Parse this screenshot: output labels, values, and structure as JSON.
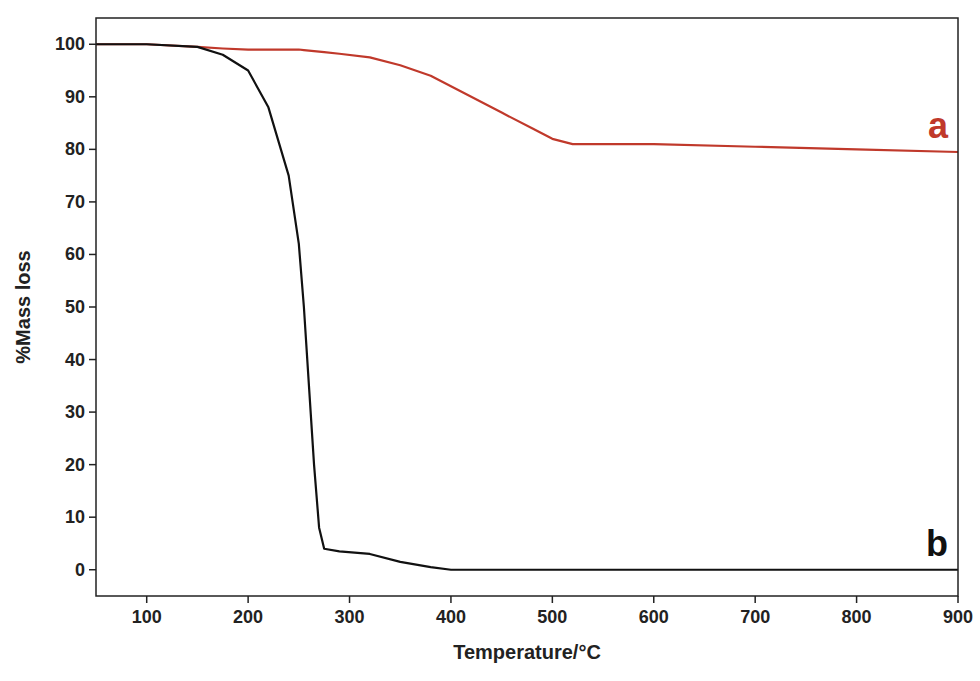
{
  "chart_data": {
    "type": "line",
    "x_label": "Temperature/°C",
    "y_label": "%Mass loss",
    "x": [
      50,
      100,
      150,
      175,
      200,
      220,
      240,
      250,
      255,
      260,
      265,
      270,
      275,
      290,
      320,
      350,
      380,
      400,
      450,
      480,
      500,
      520,
      550,
      600,
      700,
      800,
      900
    ],
    "series": [
      {
        "name": "a",
        "color": "#c0392b",
        "values": [
          100,
          100,
          99.5,
          99.2,
          99,
          99,
          99,
          99,
          98.9,
          98.8,
          98.7,
          98.6,
          98.5,
          98.2,
          97.5,
          96,
          94,
          92,
          87,
          84,
          82,
          81,
          81,
          81,
          80.5,
          80,
          79.5
        ]
      },
      {
        "name": "b",
        "color": "#111111",
        "values": [
          100,
          100,
          99.5,
          98,
          95,
          88,
          75,
          62,
          50,
          35,
          20,
          8,
          4,
          3.5,
          3,
          1.5,
          0.5,
          0,
          0,
          0,
          0,
          0,
          0,
          0,
          0,
          0,
          0
        ]
      }
    ],
    "xlim": [
      50,
      900
    ],
    "ylim": [
      -5,
      105
    ],
    "xticks": [
      100,
      200,
      300,
      400,
      500,
      600,
      700,
      800,
      900
    ],
    "yticks": [
      0,
      10,
      20,
      30,
      40,
      50,
      60,
      70,
      80,
      90,
      100
    ]
  }
}
